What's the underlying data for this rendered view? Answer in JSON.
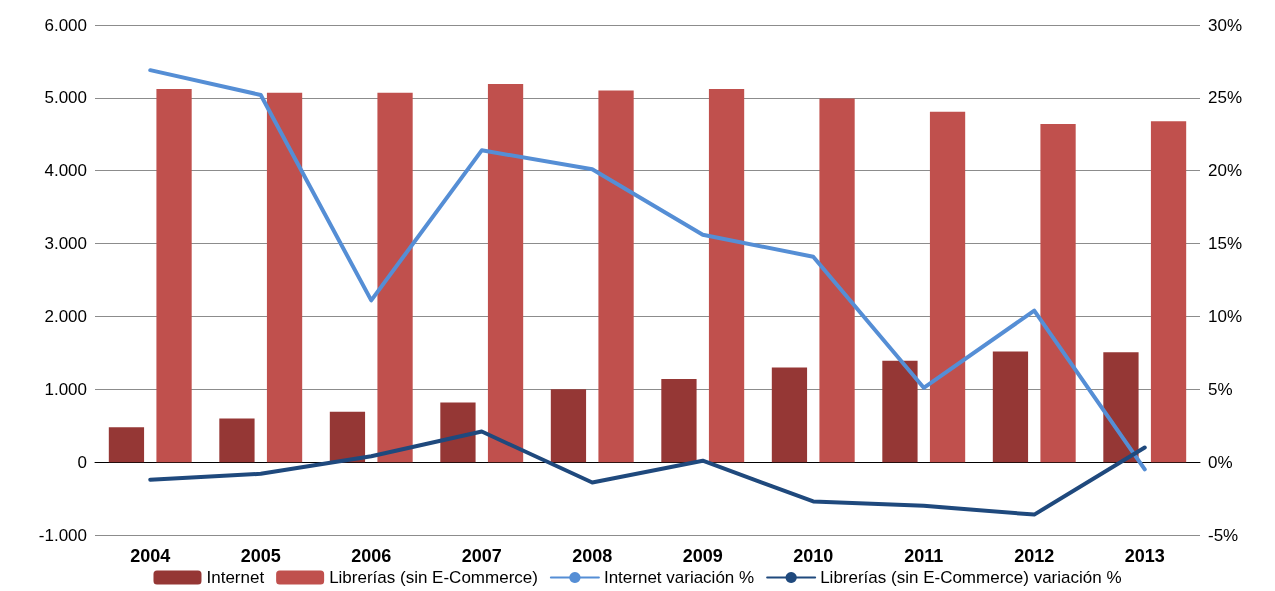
{
  "chart_data": {
    "type": "bar",
    "categories": [
      "2004",
      "2005",
      "2006",
      "2007",
      "2008",
      "2009",
      "2010",
      "2011",
      "2012",
      "2013"
    ],
    "series": [
      {
        "name": "Internet",
        "color": "#953735",
        "values": [
          480,
          600,
          690,
          820,
          1000,
          1140,
          1300,
          1390,
          1520,
          1510
        ]
      },
      {
        "name": "Librerías (sin E-Commerce)",
        "color": "#c0504d",
        "values": [
          5120,
          5070,
          5070,
          5190,
          5100,
          5120,
          4990,
          4810,
          4640,
          4680
        ]
      },
      {
        "name": "Internet variación %",
        "type": "line",
        "axis": "y2",
        "color": "#558ed5",
        "values": [
          26.9,
          25.2,
          11.1,
          21.4,
          20.1,
          15.6,
          14.1,
          5.1,
          10.4,
          -0.5
        ]
      },
      {
        "name": "Librerías (sin E-Commerce) variación %",
        "type": "line",
        "axis": "y2",
        "color": "#1f497d",
        "values": [
          -1.2,
          -0.8,
          0.4,
          2.1,
          -1.4,
          0.1,
          -2.7,
          -3.0,
          -3.6,
          1.0
        ]
      }
    ],
    "ylim": [
      -1000,
      6000
    ],
    "yticks": [
      {
        "value": -1000,
        "label": "-1.000"
      },
      {
        "value": 0,
        "label": "0"
      },
      {
        "value": 1000,
        "label": "1.000"
      },
      {
        "value": 2000,
        "label": "2.000"
      },
      {
        "value": 3000,
        "label": "3.000"
      },
      {
        "value": 4000,
        "label": "4.000"
      },
      {
        "value": 5000,
        "label": "5.000"
      },
      {
        "value": 6000,
        "label": "6.000"
      }
    ],
    "y2lim": [
      -5,
      30
    ],
    "y2ticks": [
      {
        "value": -5,
        "label": "-5%"
      },
      {
        "value": 0,
        "label": "0%"
      },
      {
        "value": 5,
        "label": "5%"
      },
      {
        "value": 10,
        "label": "10%"
      },
      {
        "value": 15,
        "label": "15%"
      },
      {
        "value": 20,
        "label": "20%"
      },
      {
        "value": 25,
        "label": "25%"
      },
      {
        "value": 30,
        "label": "30%"
      }
    ],
    "grid": "y",
    "legend": "bottom",
    "marker": "none",
    "line_style": "solid"
  }
}
